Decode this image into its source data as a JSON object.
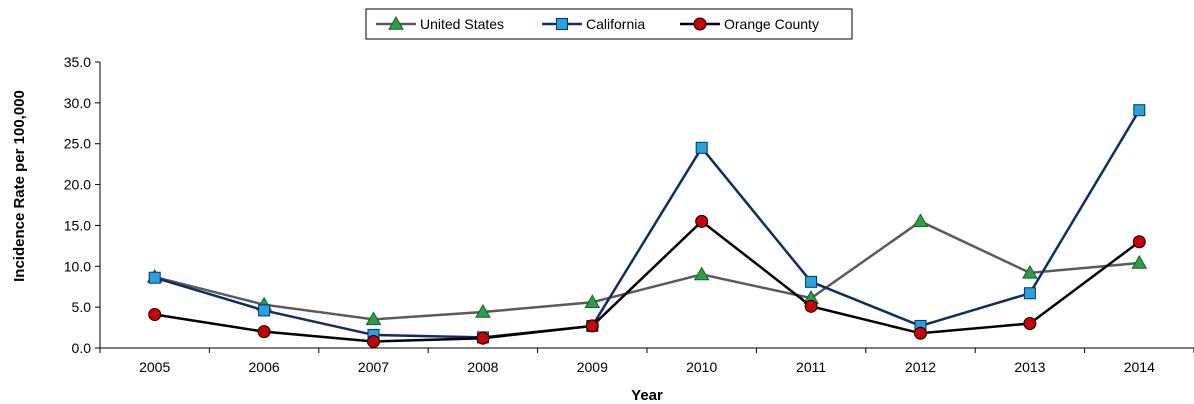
{
  "chart_data": {
    "type": "line",
    "title": "",
    "xlabel": "Year",
    "ylabel": "Incidence Rate per 100,000",
    "categories": [
      "2005",
      "2006",
      "2007",
      "2008",
      "2009",
      "2010",
      "2011",
      "2012",
      "2013",
      "2014"
    ],
    "ylim": [
      0,
      35
    ],
    "yticks": [
      "0.0",
      "5.0",
      "10.0",
      "15.0",
      "20.0",
      "25.0",
      "30.0",
      "35.0"
    ],
    "grid": false,
    "legend_position": "top-center",
    "series": [
      {
        "name": "United States",
        "color": "#5a5a5a",
        "marker_color": "#22a34a",
        "marker": "triangle-icon",
        "values": [
          8.7,
          5.3,
          3.5,
          4.4,
          5.6,
          9.0,
          6.1,
          15.5,
          9.2,
          10.4
        ]
      },
      {
        "name": "California",
        "color": "#0c2d6b",
        "marker_color": "#22a4e2",
        "marker": "square-icon",
        "values": [
          8.6,
          4.6,
          1.6,
          1.3,
          2.7,
          24.5,
          8.1,
          2.7,
          6.7,
          29.1
        ]
      },
      {
        "name": "Orange County",
        "color": "#000000",
        "marker_color": "#cc0000",
        "marker": "circle-icon",
        "values": [
          4.1,
          2.0,
          0.8,
          1.2,
          2.7,
          15.5,
          5.1,
          1.8,
          3.0,
          13.0
        ]
      }
    ]
  }
}
